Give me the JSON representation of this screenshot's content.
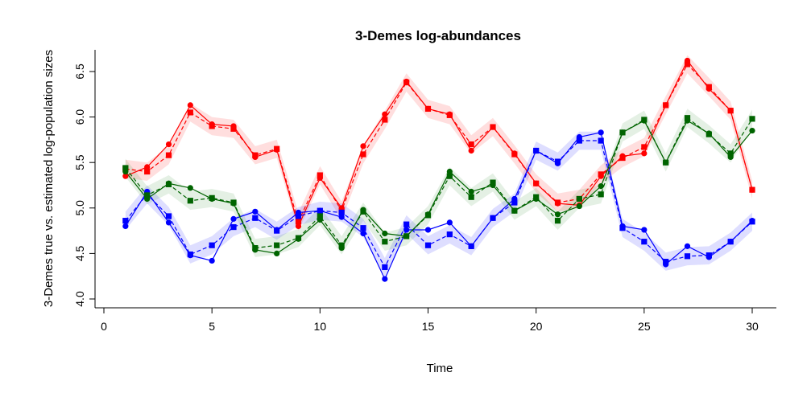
{
  "chart_data": {
    "type": "line",
    "title": "3-Demes log-abundances",
    "xlabel": "Time",
    "ylabel": "3-Demes true vs. estimated log-population sizes",
    "xlim": [
      0,
      31
    ],
    "ylim": [
      4.0,
      6.65
    ],
    "x_ticks": [
      0,
      5,
      10,
      15,
      20,
      25,
      30
    ],
    "y_ticks": [
      4.0,
      4.5,
      5.0,
      5.5,
      6.0,
      6.5
    ],
    "x": [
      1,
      2,
      3,
      4,
      5,
      6,
      7,
      8,
      9,
      10,
      11,
      12,
      13,
      14,
      15,
      16,
      17,
      18,
      19,
      20,
      21,
      22,
      23,
      24,
      25,
      26,
      27,
      28,
      29,
      30
    ],
    "band_halfwidth": 0.1,
    "grid": false,
    "legend": "none",
    "series": [
      {
        "color": "#ff0000",
        "band_color": "#ff0000",
        "true_values": [
          5.35,
          5.45,
          5.7,
          6.13,
          5.92,
          5.9,
          5.56,
          5.64,
          4.8,
          5.33,
          5.0,
          5.68,
          6.03,
          6.39,
          6.09,
          6.03,
          5.63,
          5.89,
          5.6,
          5.27,
          5.05,
          5.03,
          5.35,
          5.57,
          5.6,
          6.13,
          6.62,
          6.31,
          6.07,
          5.2
        ],
        "estimated_values": [
          5.43,
          5.4,
          5.58,
          6.05,
          5.9,
          5.87,
          5.58,
          5.65,
          4.85,
          5.36,
          4.97,
          5.59,
          5.97,
          6.38,
          6.09,
          6.02,
          5.7,
          5.89,
          5.59,
          5.27,
          5.06,
          5.1,
          5.37,
          5.55,
          5.67,
          6.13,
          6.58,
          6.33,
          6.07,
          5.2
        ]
      },
      {
        "color": "#0000ff",
        "band_color": "#0000ff",
        "true_values": [
          4.8,
          5.18,
          4.84,
          4.48,
          4.42,
          4.88,
          4.96,
          4.76,
          4.95,
          4.97,
          4.9,
          4.72,
          4.22,
          4.76,
          4.76,
          4.84,
          4.58,
          4.89,
          5.1,
          5.63,
          5.49,
          5.78,
          5.83,
          4.8,
          4.76,
          4.38,
          4.58,
          4.46,
          4.63,
          4.86
        ],
        "estimated_values": [
          4.86,
          5.15,
          4.91,
          4.49,
          4.59,
          4.79,
          4.89,
          4.75,
          4.91,
          4.97,
          4.95,
          4.78,
          4.35,
          4.82,
          4.59,
          4.71,
          4.58,
          4.89,
          5.06,
          5.63,
          5.51,
          5.74,
          5.74,
          4.78,
          4.63,
          4.41,
          4.47,
          4.48,
          4.63,
          4.85
        ]
      },
      {
        "color": "#006400",
        "band_color": "#2e8b2e",
        "true_values": [
          5.4,
          5.1,
          5.27,
          5.22,
          5.1,
          5.05,
          4.54,
          4.5,
          4.66,
          4.87,
          4.56,
          4.98,
          4.72,
          4.69,
          4.93,
          5.4,
          5.18,
          5.25,
          4.97,
          5.1,
          4.93,
          5.02,
          5.24,
          5.83,
          5.96,
          5.5,
          5.96,
          5.82,
          5.56,
          5.85
        ],
        "estimated_values": [
          5.44,
          5.14,
          5.26,
          5.08,
          5.11,
          5.06,
          4.56,
          4.59,
          4.67,
          4.91,
          4.59,
          4.96,
          4.63,
          4.69,
          4.92,
          5.35,
          5.12,
          5.28,
          4.97,
          5.12,
          4.86,
          5.1,
          5.15,
          5.83,
          5.97,
          5.5,
          5.99,
          5.81,
          5.6,
          5.98
        ]
      }
    ]
  }
}
